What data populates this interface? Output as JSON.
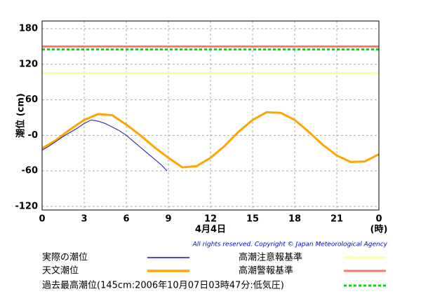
{
  "chart_data": {
    "type": "line",
    "ylabel": "潮位 (cm)",
    "xlabel": "4月4日",
    "xunit": "(時)",
    "copyright": "All rights reserved. Copyright © Japan Meteorological Agency",
    "xlim": [
      0,
      24
    ],
    "xticks": [
      0,
      3,
      6,
      9,
      12,
      15,
      18,
      21,
      {
        "value": 24,
        "label": "0"
      }
    ],
    "ylim": [
      -126,
      193
    ],
    "yticks": [
      {
        "value": -120,
        "label": "-120"
      },
      {
        "value": -60,
        "label": "-60"
      },
      {
        "value": 0,
        "label": "-0"
      },
      60,
      120,
      180
    ],
    "grid": true,
    "series": [
      {
        "name": "実際の潮位",
        "color": "#3333bb",
        "width": 1.2,
        "x": [
          0,
          0.5,
          1,
          1.5,
          2,
          2.5,
          3,
          3.5,
          4,
          4.5,
          5,
          5.5,
          6,
          6.5,
          7,
          7.5,
          8,
          8.5,
          8.9
        ],
        "values": [
          -25,
          -18,
          -10,
          -2,
          5,
          12,
          20,
          26,
          24,
          20,
          14,
          8,
          0,
          -10,
          -20,
          -30,
          -40,
          -50,
          -60
        ]
      },
      {
        "name": "天文潮位",
        "color": "#ffa500",
        "width": 3,
        "x": [
          0,
          1,
          2,
          3,
          4,
          5,
          6,
          7,
          8,
          9,
          10,
          11,
          12,
          13,
          14,
          15,
          16,
          17,
          18,
          19,
          20,
          21,
          22,
          23,
          24
        ],
        "values": [
          -22,
          -8,
          10,
          26,
          36,
          34,
          18,
          0,
          -20,
          -38,
          -54,
          -52,
          -38,
          -18,
          6,
          26,
          39,
          38,
          26,
          6,
          -16,
          -34,
          -45,
          -44,
          -32
        ]
      }
    ],
    "levels": [
      {
        "name": "高潮注意報基準",
        "color": "#ffff99",
        "value": 105,
        "dash": false
      },
      {
        "name": "高潮警報基準",
        "color": "#ff7766",
        "value": 150,
        "dash": false
      },
      {
        "name": "過去最高潮位(145cm:2006年10月07日03時47分:低気圧)",
        "color": "#00dd00",
        "value": 145,
        "dash": true
      }
    ]
  }
}
